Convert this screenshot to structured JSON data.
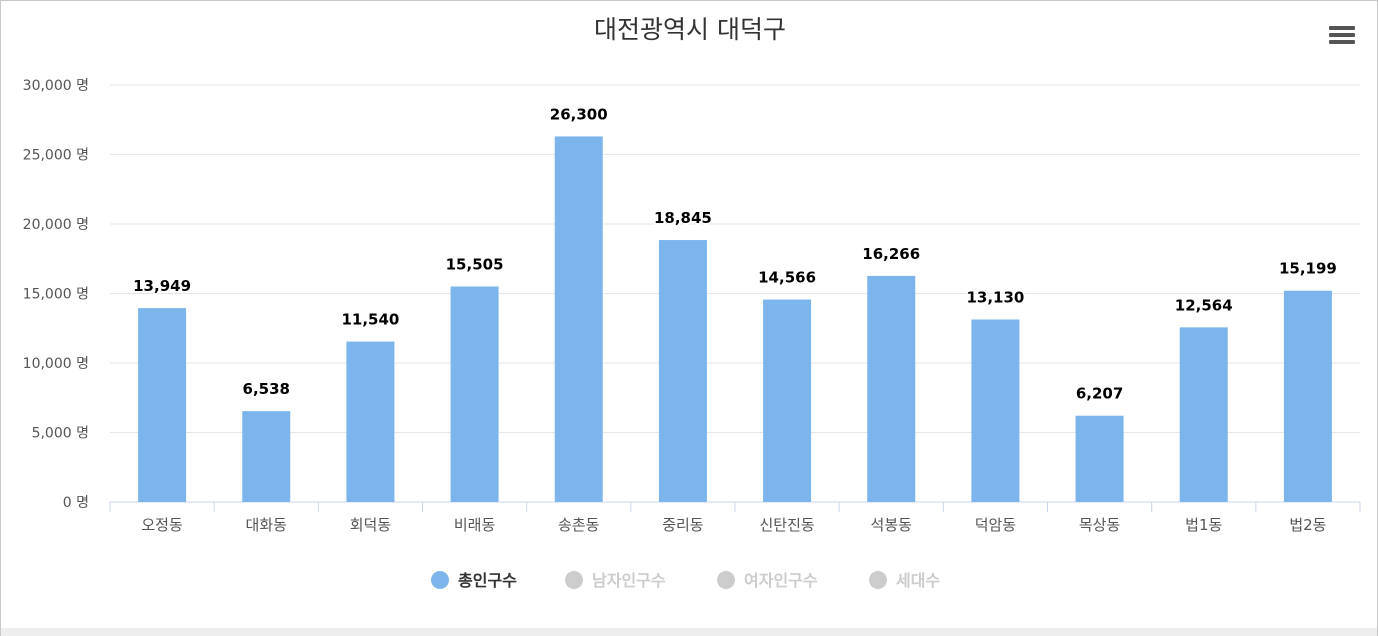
{
  "chart_data": {
    "type": "bar",
    "title": "대전광역시 대덕구",
    "categories": [
      "오정동",
      "대화동",
      "회덕동",
      "비래동",
      "송촌동",
      "중리동",
      "신탄진동",
      "석봉동",
      "덕암동",
      "목상동",
      "법1동",
      "법2동"
    ],
    "series": [
      {
        "name": "총인구수",
        "values": [
          13949,
          6538,
          11540,
          15505,
          26300,
          18845,
          14566,
          16266,
          13130,
          6207,
          12564,
          15199
        ],
        "visible": true,
        "color": "#7cb5ec"
      }
    ],
    "legend": [
      {
        "name": "총인구수",
        "active": true,
        "color": "#7cb5ec"
      },
      {
        "name": "남자인구수",
        "active": false,
        "color": "#cccccc"
      },
      {
        "name": "여자인구수",
        "active": false,
        "color": "#cccccc"
      },
      {
        "name": "세대수",
        "active": false,
        "color": "#cccccc"
      }
    ],
    "ylim": [
      0,
      30000
    ],
    "yticks": [
      0,
      5000,
      10000,
      15000,
      20000,
      25000,
      30000
    ],
    "y_unit": "명",
    "grid": true,
    "legend_position": "bottom-center",
    "data_labels": true
  }
}
